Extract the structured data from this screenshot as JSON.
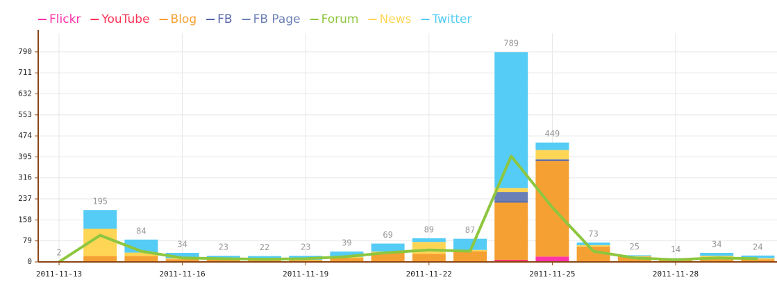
{
  "chart_data": {
    "type": "bar",
    "stacked": true,
    "categories": [
      "2011-11-13",
      null,
      null,
      "2011-11-16",
      null,
      null,
      "2011-11-19",
      null,
      null,
      "2011-11-22",
      null,
      null,
      "2011-11-25",
      null,
      null,
      "2011-11-28",
      null,
      null
    ],
    "series": [
      {
        "name": "Flickr",
        "color": "#ff33aa",
        "values": [
          0,
          0,
          0,
          0,
          0,
          0,
          0,
          0,
          0,
          0,
          0,
          4,
          20,
          2,
          0,
          0,
          0,
          0
        ]
      },
      {
        "name": "YouTube",
        "color": "#ff3355",
        "values": [
          0,
          0,
          0,
          0,
          0,
          0,
          0,
          0,
          0,
          0,
          0,
          4,
          0,
          0,
          0,
          0,
          0,
          0
        ]
      },
      {
        "name": "Blog",
        "color": "#f5a033",
        "values": [
          2,
          22,
          22,
          10,
          8,
          6,
          6,
          15,
          35,
          30,
          40,
          215,
          360,
          56,
          20,
          8,
          15,
          10
        ]
      },
      {
        "name": "FB",
        "color": "#5566aa",
        "values": [
          0,
          0,
          0,
          0,
          0,
          0,
          0,
          0,
          0,
          0,
          0,
          5,
          4,
          0,
          0,
          0,
          0,
          0
        ]
      },
      {
        "name": "FB Page",
        "color": "#6a7fb5",
        "values": [
          0,
          0,
          0,
          0,
          0,
          0,
          0,
          0,
          0,
          0,
          0,
          35,
          2,
          0,
          0,
          0,
          0,
          0
        ]
      },
      {
        "name": "Forum",
        "color": "#8dc63f",
        "type": "line",
        "values": [
          0,
          100,
          40,
          15,
          12,
          10,
          12,
          20,
          35,
          45,
          40,
          398,
          205,
          40,
          15,
          8,
          15,
          12
        ]
      },
      {
        "name": "News",
        "color": "#ffd555",
        "values": [
          0,
          103,
          13,
          4,
          3,
          2,
          2,
          4,
          4,
          45,
          5,
          15,
          35,
          5,
          2,
          2,
          8,
          4
        ]
      },
      {
        "name": "Twitter",
        "color": "#55ccf5",
        "values": [
          0,
          70,
          49,
          20,
          12,
          14,
          15,
          20,
          30,
          14,
          42,
          511,
          28,
          10,
          3,
          4,
          11,
          10
        ]
      }
    ],
    "totals": [
      2,
      195,
      84,
      34,
      23,
      22,
      23,
      39,
      69,
      89,
      87,
      789,
      449,
      73,
      25,
      14,
      34,
      24
    ],
    "ylim": [
      0,
      860
    ],
    "yticks": [
      0,
      79,
      158,
      237,
      316,
      395,
      474,
      553,
      632,
      711,
      790
    ],
    "grid": true
  }
}
